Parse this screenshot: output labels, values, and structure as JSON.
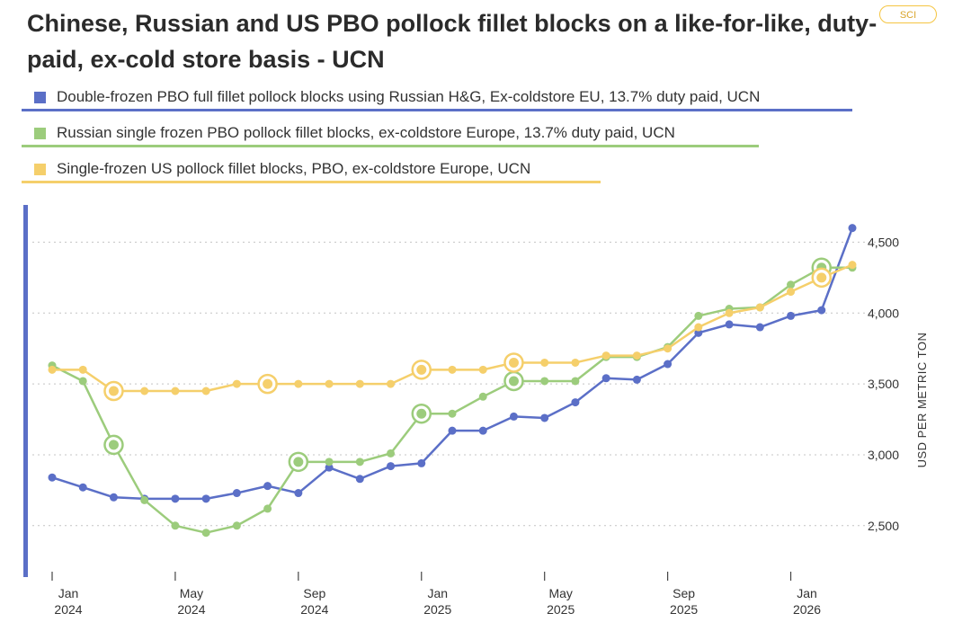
{
  "header": {
    "title": "Chinese, Russian and US PBO pollock fillet blocks on a like-for-like, duty-paid, ex-cold store basis - UCN",
    "badge": "SCI"
  },
  "legend": [
    {
      "label": "Double-frozen PBO full fillet pollock blocks using Russian H&G, Ex-coldstore EU, 13.7% duty paid, UCN",
      "color": "#5b6fc7"
    },
    {
      "label": "Russian single frozen PBO pollock fillet blocks, ex-coldstore Europe, 13.7% duty paid, UCN",
      "color": "#9ccc7c"
    },
    {
      "label": "Single-frozen US pollock fillet blocks, PBO, ex-coldstore Europe, UCN",
      "color": "#f5cf6b"
    }
  ],
  "chart_data": {
    "type": "line",
    "ylabel": "USD PER METRIC TON",
    "ylim": [
      2150,
      4750
    ],
    "yticks": [
      2500,
      3000,
      3500,
      4000,
      4500
    ],
    "ytick_labels": [
      "2,500",
      "3,000",
      "3,500",
      "4,000",
      "4,500"
    ],
    "x": [
      "2024-01",
      "2024-02",
      "2024-03",
      "2024-04",
      "2024-05",
      "2024-06",
      "2024-07",
      "2024-08",
      "2024-09",
      "2024-10",
      "2024-11",
      "2024-12",
      "2025-01",
      "2025-02",
      "2025-03",
      "2025-04",
      "2025-05",
      "2025-06",
      "2025-07",
      "2025-08",
      "2025-09",
      "2025-10",
      "2025-11",
      "2025-12",
      "2026-01",
      "2026-02",
      "2026-03"
    ],
    "xticks": [
      {
        "index": 0,
        "month": "Jan",
        "year": "2024"
      },
      {
        "index": 4,
        "month": "May",
        "year": "2024"
      },
      {
        "index": 8,
        "month": "Sep",
        "year": "2024"
      },
      {
        "index": 12,
        "month": "Jan",
        "year": "2025"
      },
      {
        "index": 16,
        "month": "May",
        "year": "2025"
      },
      {
        "index": 20,
        "month": "Sep",
        "year": "2025"
      },
      {
        "index": 24,
        "month": "Jan",
        "year": "2026"
      }
    ],
    "series": [
      {
        "name": "Double-frozen PBO full fillet pollock blocks using Russian H&G, Ex-coldstore EU, 13.7% duty paid, UCN",
        "color": "#5b6fc7",
        "values": [
          2840,
          2770,
          2700,
          2690,
          2690,
          2690,
          2730,
          2780,
          2730,
          2910,
          2830,
          2920,
          2940,
          3170,
          3170,
          3270,
          3260,
          3370,
          3540,
          3530,
          3640,
          3860,
          3920,
          3900,
          3980,
          4020,
          4600
        ],
        "highlights": []
      },
      {
        "name": "Russian single frozen PBO pollock fillet blocks, ex-coldstore Europe, 13.7% duty paid, UCN",
        "color": "#9ccc7c",
        "values": [
          3630,
          3520,
          3070,
          2680,
          2500,
          2450,
          2500,
          2620,
          2950,
          2950,
          2950,
          3010,
          3290,
          3290,
          3410,
          3520,
          3520,
          3520,
          3690,
          3690,
          3760,
          3980,
          4030,
          4040,
          4200,
          4320,
          4320
        ],
        "highlights": [
          2,
          8,
          12,
          15,
          25
        ]
      },
      {
        "name": "Single-frozen US pollock fillet blocks, PBO, ex-coldstore Europe, UCN",
        "color": "#f5cf6b",
        "values": [
          3600,
          3600,
          3450,
          3450,
          3450,
          3450,
          3500,
          3500,
          3500,
          3500,
          3500,
          3500,
          3600,
          3600,
          3600,
          3650,
          3650,
          3650,
          3700,
          3700,
          3750,
          3900,
          4000,
          4040,
          4150,
          4250,
          4340
        ],
        "highlights": [
          2,
          7,
          12,
          15,
          25
        ]
      }
    ]
  }
}
